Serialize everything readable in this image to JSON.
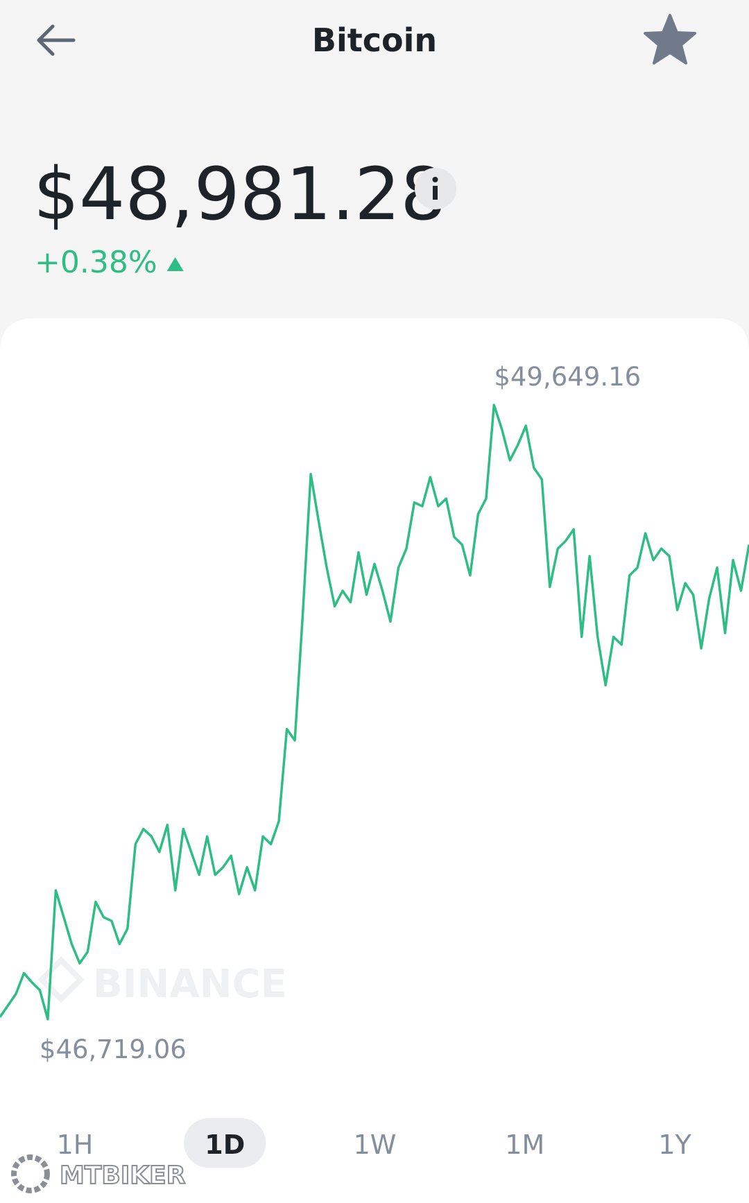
{
  "header": {
    "title": "Bitcoin"
  },
  "price": "$48,981.28",
  "change": "+0.38%",
  "chart_data": {
    "type": "line",
    "color": "#2ebd85",
    "max_label": "$49,649.16",
    "min_label": "$46,719.06",
    "watermark": "BINANCE",
    "values": [
      46730,
      46785,
      46840,
      46939,
      46895,
      46858,
      46719.06,
      47334,
      47206,
      47078,
      46986,
      47041,
      47279,
      47206,
      47188,
      47078,
      47151,
      47554,
      47627,
      47591,
      47517,
      47646,
      47334,
      47627,
      47517,
      47408,
      47591,
      47408,
      47444,
      47499,
      47316,
      47444,
      47334,
      47591,
      47554,
      47664,
      48103,
      48049,
      48653,
      49319,
      49092,
      48873,
      48689,
      48763,
      48708,
      48946,
      48744,
      48891,
      48763,
      48616,
      48873,
      48964,
      49184,
      49166,
      49305,
      49166,
      49202,
      49019,
      48982,
      48836,
      49129,
      49202,
      49649.16,
      49532,
      49385,
      49459,
      49550,
      49349,
      49294,
      48781,
      48964,
      49001,
      49056,
      48543,
      48928,
      48543,
      48312,
      48543,
      48506,
      48836,
      48873,
      49037,
      48909,
      48964,
      48928,
      48671,
      48799,
      48744,
      48488,
      48726,
      48873,
      48561,
      48909,
      48763,
      48982
    ]
  },
  "tabs": [
    "1H",
    "1D",
    "1W",
    "1M",
    "1Y"
  ],
  "selected_tab": 1,
  "watermark": "MTBIKER"
}
